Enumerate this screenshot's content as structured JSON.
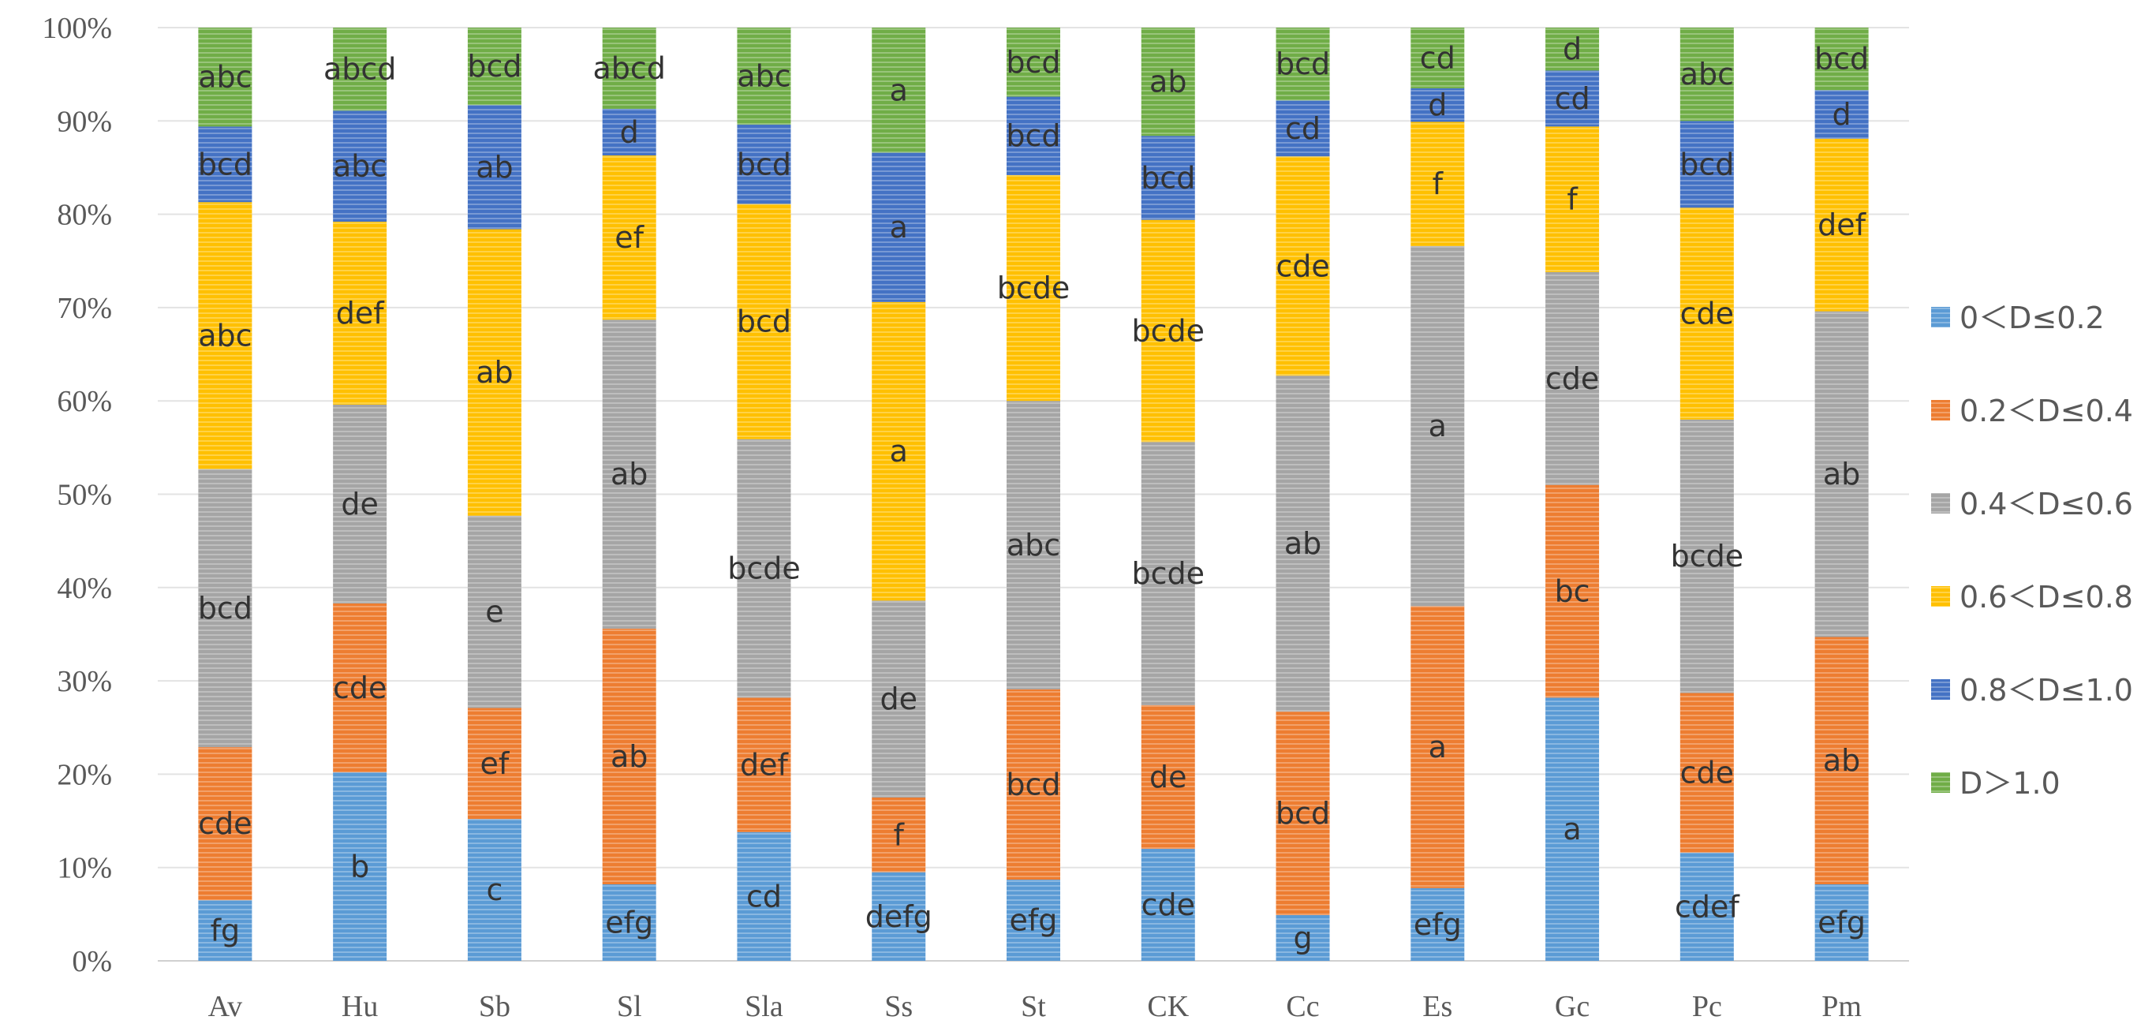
{
  "chart_data": {
    "type": "bar",
    "stacked": true,
    "title": "",
    "xlabel": "",
    "ylabel": "",
    "ylim": [
      0,
      100
    ],
    "yticks": [
      "0%",
      "10%",
      "20%",
      "30%",
      "40%",
      "50%",
      "60%",
      "70%",
      "80%",
      "90%",
      "100%"
    ],
    "categories": [
      "Av",
      "Hu",
      "Sb",
      "Sl",
      "Sla",
      "Ss",
      "St",
      "CK",
      "Cc",
      "Es",
      "Gc",
      "Pc",
      "Pm"
    ],
    "legend_position": "right",
    "series": [
      {
        "name": "0＜D≤0.2",
        "color": "#5b9bd5",
        "values": [
          6.5,
          20.2,
          15.2,
          8.2,
          13.8,
          9.5,
          8.7,
          12.0,
          4.9,
          7.8,
          28.2,
          11.6,
          8.2
        ],
        "labels": [
          "fg",
          "b",
          "c",
          "efg",
          "cd",
          "defg",
          "efg",
          "cde",
          "g",
          "efg",
          "a",
          "cdef",
          "efg"
        ]
      },
      {
        "name": "0.2＜D≤0.4",
        "color": "#ed7d31",
        "values": [
          16.4,
          18.1,
          11.9,
          27.4,
          14.4,
          8.0,
          20.4,
          15.4,
          21.8,
          30.2,
          22.8,
          17.1,
          26.5
        ],
        "labels": [
          "cde",
          "cde",
          "ef",
          "ab",
          "def",
          "f",
          "bcd",
          "de",
          "bcd",
          "a",
          "bc",
          "cde",
          "ab"
        ]
      },
      {
        "name": "0.4＜D≤0.6",
        "color": "#a5a5a5",
        "values": [
          29.8,
          21.3,
          20.6,
          33.1,
          27.7,
          21.1,
          30.9,
          28.2,
          36.0,
          38.6,
          22.8,
          29.3,
          34.9
        ],
        "labels": [
          "bcd",
          "de",
          "e",
          "ab",
          "bcde",
          "de",
          "abc",
          "bcde",
          "ab",
          "a",
          "cde",
          "bcde",
          "ab"
        ]
      },
      {
        "name": "0.6＜D≤0.8",
        "color": "#ffc000",
        "values": [
          28.6,
          19.6,
          30.7,
          17.6,
          25.2,
          32.0,
          24.2,
          23.8,
          23.5,
          13.3,
          15.6,
          22.7,
          18.5
        ],
        "labels": [
          "abc",
          "def",
          "ab",
          "ef",
          "bcd",
          "a",
          "bcde",
          "bcde",
          "cde",
          "f",
          "f",
          "cde",
          "def"
        ]
      },
      {
        "name": "0.8＜D≤1.0",
        "color": "#4472c4",
        "values": [
          8.1,
          11.9,
          13.3,
          5.0,
          8.5,
          16.0,
          8.4,
          9.0,
          6.0,
          3.6,
          6.0,
          9.3,
          5.2
        ],
        "labels": [
          "bcd",
          "abc",
          "ab",
          "d",
          "bcd",
          "a",
          "bcd",
          "bcd",
          "cd",
          "d",
          "cd",
          "bcd",
          "d"
        ]
      },
      {
        "name": "D＞1.0",
        "color": "#70ad47",
        "values": [
          10.6,
          8.9,
          8.3,
          8.7,
          10.4,
          13.4,
          7.4,
          11.6,
          7.8,
          6.5,
          4.6,
          10.0,
          6.7
        ],
        "labels": [
          "abc",
          "abcd",
          "bcd",
          "abcd",
          "abc",
          "a",
          "bcd",
          "ab",
          "bcd",
          "cd",
          "d",
          "abc",
          "bcd"
        ]
      }
    ]
  }
}
